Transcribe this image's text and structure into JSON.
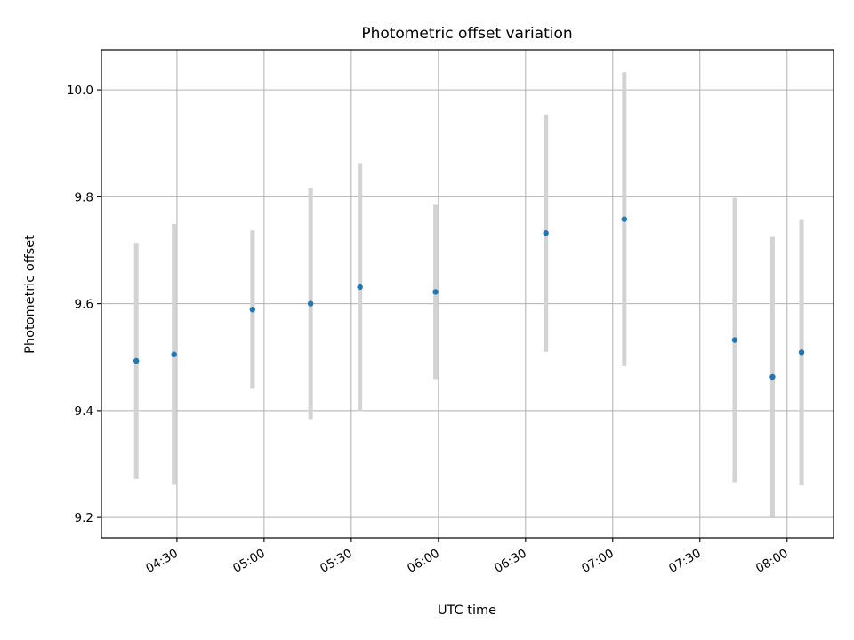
{
  "chart_data": {
    "type": "scatter",
    "title": "Photometric offset variation",
    "xlabel": "UTC time",
    "ylabel": "Photometric offset",
    "x_tick_labels": [
      "04:30",
      "05:00",
      "05:30",
      "06:00",
      "06:30",
      "07:00",
      "07:30",
      "08:00"
    ],
    "y_tick_labels": [
      "9.2",
      "9.4",
      "9.6",
      "9.8",
      "10.0"
    ],
    "x_ticks": [
      "04:30",
      "05:00",
      "05:30",
      "06:00",
      "06:30",
      "07:00",
      "07:30",
      "08:00"
    ],
    "y_ticks": [
      9.2,
      9.4,
      9.6,
      9.8,
      10.0
    ],
    "xlim": [
      "04:04",
      "08:16"
    ],
    "ylim": [
      9.162,
      10.075
    ],
    "grid": true,
    "point_color": "#1f77b4",
    "errorbar_color": "#d3d3d3",
    "points": [
      {
        "x": "04:16",
        "y": 9.493,
        "err": 0.221
      },
      {
        "x": "04:29",
        "y": 9.505,
        "err": 0.244
      },
      {
        "x": "04:56",
        "y": 9.589,
        "err": 0.148
      },
      {
        "x": "05:16",
        "y": 9.6,
        "err": 0.216
      },
      {
        "x": "05:33",
        "y": 9.631,
        "err": 0.232
      },
      {
        "x": "05:59",
        "y": 9.622,
        "err": 0.163
      },
      {
        "x": "06:37",
        "y": 9.732,
        "err": 0.222
      },
      {
        "x": "07:04",
        "y": 9.758,
        "err": 0.275
      },
      {
        "x": "07:42",
        "y": 9.532,
        "err": 0.266
      },
      {
        "x": "07:55",
        "y": 9.463,
        "err": 0.262
      },
      {
        "x": "08:05",
        "y": 9.509,
        "err": 0.249
      }
    ]
  }
}
